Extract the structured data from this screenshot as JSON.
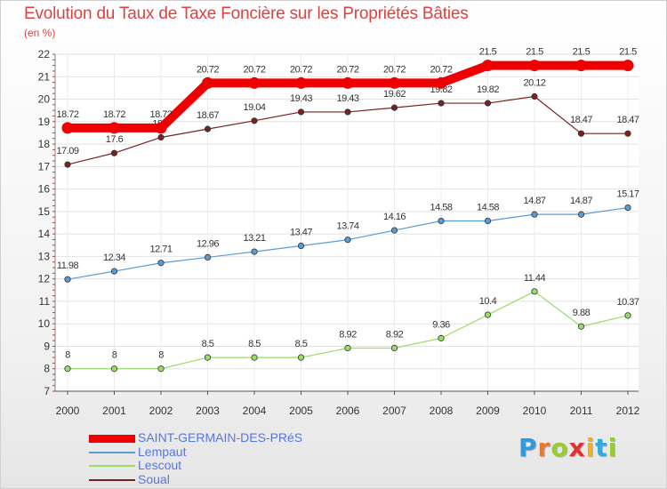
{
  "chart_data": {
    "type": "line",
    "title": "Evolution du Taux de Taxe Foncière sur les Propriétés Bâties",
    "subtitle": "(en %)",
    "xlabel": "",
    "ylabel": "",
    "x": [
      "2000",
      "2001",
      "2002",
      "2003",
      "2004",
      "2005",
      "2006",
      "2007",
      "2008",
      "2009",
      "2010",
      "2011",
      "2012"
    ],
    "ylim": [
      7,
      22
    ],
    "yticks": [
      7,
      8,
      9,
      10,
      11,
      12,
      13,
      14,
      15,
      16,
      17,
      18,
      19,
      20,
      21,
      22
    ],
    "grid": true,
    "legend_position": "bottom-left",
    "series": [
      {
        "name": "SAINT-GERMAIN-DES-PRéS",
        "color": "#ee0000",
        "values": [
          18.72,
          18.72,
          18.72,
          20.72,
          20.72,
          20.72,
          20.72,
          20.72,
          20.72,
          21.5,
          21.5,
          21.5,
          21.5
        ],
        "labels": [
          "18.72",
          "18.72",
          "18.72",
          "20.72",
          "20.72",
          "20.72",
          "20.72",
          "20.72",
          "20.72",
          "21.5",
          "21.5",
          "21.5",
          "21.5"
        ]
      },
      {
        "name": "Lempaut",
        "color": "#5b9bd5",
        "values": [
          11.98,
          12.34,
          12.71,
          12.96,
          13.21,
          13.47,
          13.74,
          14.16,
          14.58,
          14.58,
          14.87,
          14.87,
          15.17
        ],
        "labels": [
          "11.98",
          "12.34",
          "12.71",
          "12.96",
          "13.21",
          "13.47",
          "13.74",
          "14.16",
          "14.58",
          "14.58",
          "14.87",
          "14.87",
          "15.17"
        ]
      },
      {
        "name": "Lescout",
        "color": "#99dd66",
        "values": [
          8,
          8,
          8,
          8.5,
          8.5,
          8.5,
          8.92,
          8.92,
          9.36,
          10.4,
          11.44,
          9.88,
          10.37
        ],
        "labels": [
          "8",
          "8",
          "8",
          "8.5",
          "8.5",
          "8.5",
          "8.92",
          "8.92",
          "9.36",
          "10.4",
          "11.44",
          "9.88",
          "10.37"
        ]
      },
      {
        "name": "Soual",
        "color": "#772222",
        "values": [
          17.09,
          17.6,
          18.3,
          18.67,
          19.04,
          19.43,
          19.43,
          19.62,
          19.82,
          19.82,
          20.12,
          18.47,
          18.47
        ],
        "labels": [
          "17.09",
          "17.6",
          "18.3",
          "18.67",
          "19.04",
          "19.43",
          "19.43",
          "19.62",
          "19.82",
          "19.82",
          "20.12",
          "18.47",
          "18.47"
        ]
      }
    ]
  },
  "logo": {
    "letters": [
      "P",
      "r",
      "o",
      "x",
      "i",
      "t",
      "i"
    ],
    "colors": [
      "#3399dd",
      "#ee7722",
      "#99cc33",
      "#dd3333",
      "#f0b020",
      "#33aadd",
      "#99cc33"
    ]
  }
}
